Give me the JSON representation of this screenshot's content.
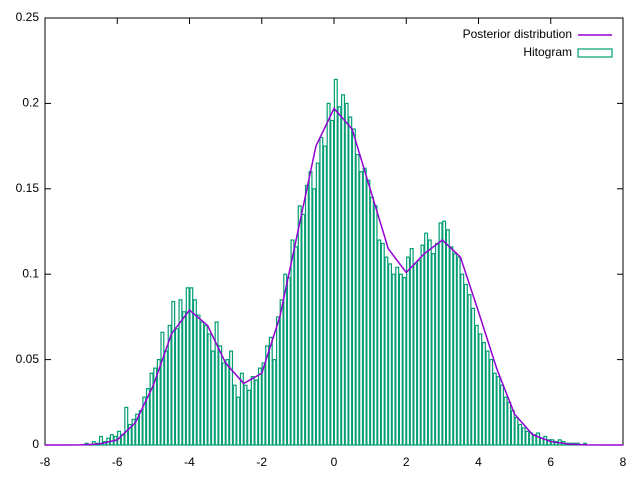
{
  "chart_data": {
    "type": "histogram",
    "xlim": [
      -8,
      8
    ],
    "ylim": [
      0,
      0.25
    ],
    "xticks": [
      -8,
      -6,
      -4,
      -2,
      0,
      2,
      4,
      6,
      8
    ],
    "yticks": [
      0,
      0.05,
      0.1,
      0.15,
      0.2,
      0.25
    ],
    "legend": "top-right",
    "series": [
      {
        "type": "line",
        "name": "Posterior distribution",
        "color": "#9400d3",
        "x": [
          -8,
          -7.5,
          -7,
          -6.5,
          -6,
          -5.5,
          -5,
          -4.5,
          -4,
          -3.5,
          -3,
          -2.5,
          -2,
          -1.5,
          -1,
          -0.5,
          0,
          0.5,
          1,
          1.5,
          2,
          2.5,
          3,
          3.5,
          4,
          4.5,
          5,
          5.5,
          6,
          6.5,
          7,
          7.5,
          8
        ],
        "values": [
          0,
          0,
          0.0001,
          0.0006,
          0.003,
          0.013,
          0.035,
          0.065,
          0.079,
          0.07,
          0.048,
          0.036,
          0.042,
          0.075,
          0.125,
          0.175,
          0.197,
          0.185,
          0.15,
          0.115,
          0.101,
          0.112,
          0.12,
          0.11,
          0.078,
          0.045,
          0.018,
          0.006,
          0.002,
          0.0005,
          0.0001,
          0,
          0
        ]
      },
      {
        "type": "histogram",
        "name": "Hitogram",
        "color": "#009e73",
        "bins": [
          -7,
          -6.9,
          -6.8,
          -6.7,
          -6.6,
          -6.5,
          -6.4,
          -6.3,
          -6.2,
          -6.1,
          -6,
          -5.9,
          -5.8,
          -5.7,
          -5.6,
          -5.5,
          -5.4,
          -5.3,
          -5.2,
          -5.1,
          -5,
          -4.9,
          -4.8,
          -4.7,
          -4.6,
          -4.5,
          -4.4,
          -4.3,
          -4.2,
          -4.1,
          -4,
          -3.9,
          -3.8,
          -3.7,
          -3.6,
          -3.5,
          -3.4,
          -3.3,
          -3.2,
          -3.1,
          -3,
          -2.9,
          -2.8,
          -2.7,
          -2.6,
          -2.5,
          -2.4,
          -2.3,
          -2.2,
          -2.1,
          -2,
          -1.9,
          -1.8,
          -1.7,
          -1.6,
          -1.5,
          -1.4,
          -1.3,
          -1.2,
          -1.1,
          -1,
          -0.9,
          -0.8,
          -0.7,
          -0.6,
          -0.5,
          -0.4,
          -0.3,
          -0.2,
          -0.1,
          0,
          0.1,
          0.2,
          0.3,
          0.4,
          0.5,
          0.6,
          0.7,
          0.8,
          0.9,
          1,
          1.1,
          1.2,
          1.3,
          1.4,
          1.5,
          1.6,
          1.7,
          1.8,
          1.9,
          2,
          2.1,
          2.2,
          2.3,
          2.4,
          2.5,
          2.6,
          2.7,
          2.8,
          2.9,
          3,
          3.1,
          3.2,
          3.3,
          3.4,
          3.5,
          3.6,
          3.7,
          3.8,
          3.9,
          4,
          4.1,
          4.2,
          4.3,
          4.4,
          4.5,
          4.6,
          4.7,
          4.8,
          4.9,
          5,
          5.1,
          5.2,
          5.3,
          5.4,
          5.5,
          5.6,
          5.7,
          5.8,
          5.9,
          6,
          6.1,
          6.2,
          6.3,
          6.4,
          6.5,
          6.6,
          6.7,
          6.8,
          6.9,
          7
        ],
        "values": [
          0,
          0.001,
          0,
          0.002,
          0.001,
          0.005,
          0.002,
          0.004,
          0.006,
          0.005,
          0.008,
          0.006,
          0.022,
          0.012,
          0.015,
          0.018,
          0.02,
          0.028,
          0.033,
          0.042,
          0.045,
          0.05,
          0.066,
          0.055,
          0.07,
          0.084,
          0.068,
          0.085,
          0.078,
          0.092,
          0.092,
          0.085,
          0.076,
          0.072,
          0.07,
          0.065,
          0.055,
          0.072,
          0.058,
          0.048,
          0.05,
          0.055,
          0.035,
          0.028,
          0.042,
          0.035,
          0.032,
          0.04,
          0.038,
          0.045,
          0.048,
          0.058,
          0.063,
          0.05,
          0.075,
          0.085,
          0.1,
          0.098,
          0.12,
          0.116,
          0.14,
          0.135,
          0.152,
          0.16,
          0.15,
          0.165,
          0.18,
          0.175,
          0.2,
          0.19,
          0.214,
          0.198,
          0.205,
          0.2,
          0.192,
          0.185,
          0.17,
          0.16,
          0.162,
          0.155,
          0.145,
          0.14,
          0.12,
          0.118,
          0.11,
          0.106,
          0.1,
          0.104,
          0.1,
          0.098,
          0.11,
          0.115,
          0.106,
          0.108,
          0.117,
          0.124,
          0.12,
          0.112,
          0.118,
          0.13,
          0.131,
          0.126,
          0.116,
          0.112,
          0.11,
          0.1,
          0.094,
          0.088,
          0.08,
          0.07,
          0.065,
          0.06,
          0.055,
          0.05,
          0.042,
          0.04,
          0.035,
          0.028,
          0.025,
          0.02,
          0.016,
          0.012,
          0.01,
          0.008,
          0.007,
          0.006,
          0.007,
          0.004,
          0.005,
          0.003,
          0.003,
          0.002,
          0.003,
          0.002,
          0.001,
          0.001,
          0.001,
          0.001,
          0,
          0.001
        ]
      }
    ]
  }
}
